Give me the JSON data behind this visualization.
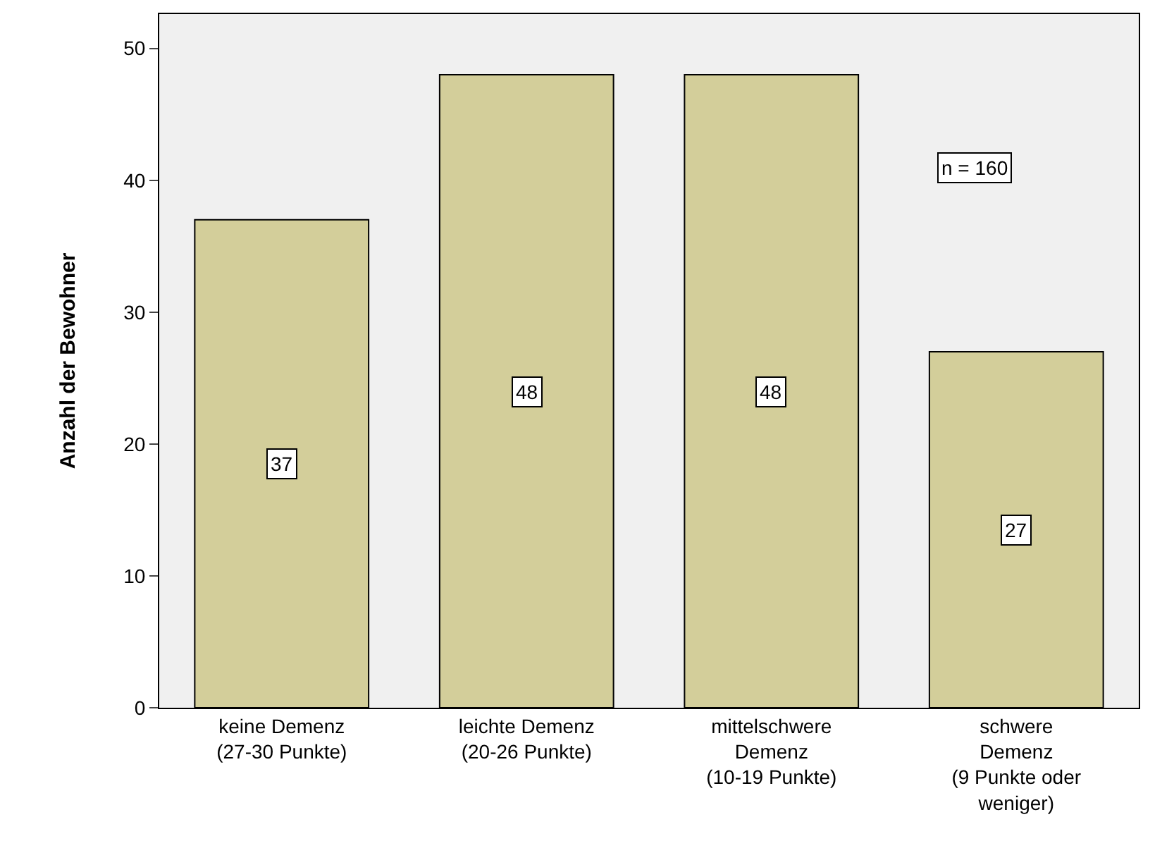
{
  "chart_data": {
    "type": "bar",
    "ylabel": "Anzahl der Bewohner",
    "categories": [
      "keine Demenz\n(27-30 Punkte)",
      "leichte Demenz\n(20-26 Punkte)",
      "mittelschwere\nDemenz\n(10-19 Punkte)",
      "schwere\nDemenz\n(9 Punkte oder\nweniger)"
    ],
    "values": [
      37,
      48,
      48,
      27
    ],
    "color": "#d3ce9a",
    "ylim": [
      0,
      52.6
    ],
    "yticks": [
      0,
      10,
      20,
      30,
      40,
      50
    ],
    "grid": false,
    "data_labels": true,
    "annotations": [
      "n = 160"
    ]
  }
}
